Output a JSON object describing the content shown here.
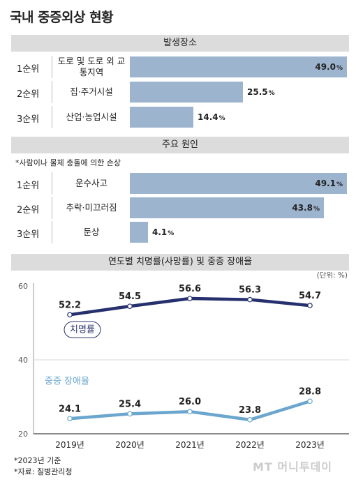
{
  "title": "국내 중증외상 현황",
  "sections": {
    "place": {
      "header": "발생장소",
      "rows": [
        {
          "rank": "1순위",
          "label": "도로 및 도로 외 교통지역",
          "value": 49.0,
          "display": "49.0"
        },
        {
          "rank": "2순위",
          "label": "집·주거시설",
          "value": 25.5,
          "display": "25.5"
        },
        {
          "rank": "3순위",
          "label": "산업·농업시설",
          "value": 14.4,
          "display": "14.4"
        }
      ]
    },
    "cause": {
      "header": "주요 원인",
      "note": "*사람이나 물체 충돌에 의한 손상",
      "rows": [
        {
          "rank": "1순위",
          "label": "운수사고",
          "value": 49.1,
          "display": "49.1"
        },
        {
          "rank": "2순위",
          "label": "추락·미끄러짐",
          "value": 43.8,
          "display": "43.8"
        },
        {
          "rank": "3순위",
          "label": "둔상",
          "value": 4.1,
          "display": "4.1"
        }
      ]
    },
    "trend_header": "연도별 치명률(사망률) 및 중증 장애율"
  },
  "unit_symbol": "%",
  "chart_data": {
    "type": "line",
    "unit_label": "(단위: %)",
    "x": [
      "2019년",
      "2020년",
      "2021년",
      "2022년",
      "2023년"
    ],
    "y_ticks": [
      "60",
      "40",
      "20"
    ],
    "ylim": [
      20,
      60
    ],
    "series": [
      {
        "name": "치명률",
        "values": [
          52.2,
          54.5,
          56.6,
          56.3,
          54.7
        ],
        "labels": [
          "52.2",
          "54.5",
          "56.6",
          "56.3",
          "54.7"
        ],
        "color": "#27306e"
      },
      {
        "name": "중증 장애율",
        "values": [
          24.1,
          25.4,
          26.0,
          23.8,
          28.8
        ],
        "labels": [
          "24.1",
          "25.4",
          "26.0",
          "23.8",
          "28.8"
        ],
        "color": "#6aa6cd"
      }
    ]
  },
  "footnotes": [
    "*2023년 기준",
    "*자료: 질병관리청"
  ],
  "logo": "MT 머니투데이",
  "colors": {
    "bar": "#9db4cf",
    "band": "#dcdcdc"
  }
}
